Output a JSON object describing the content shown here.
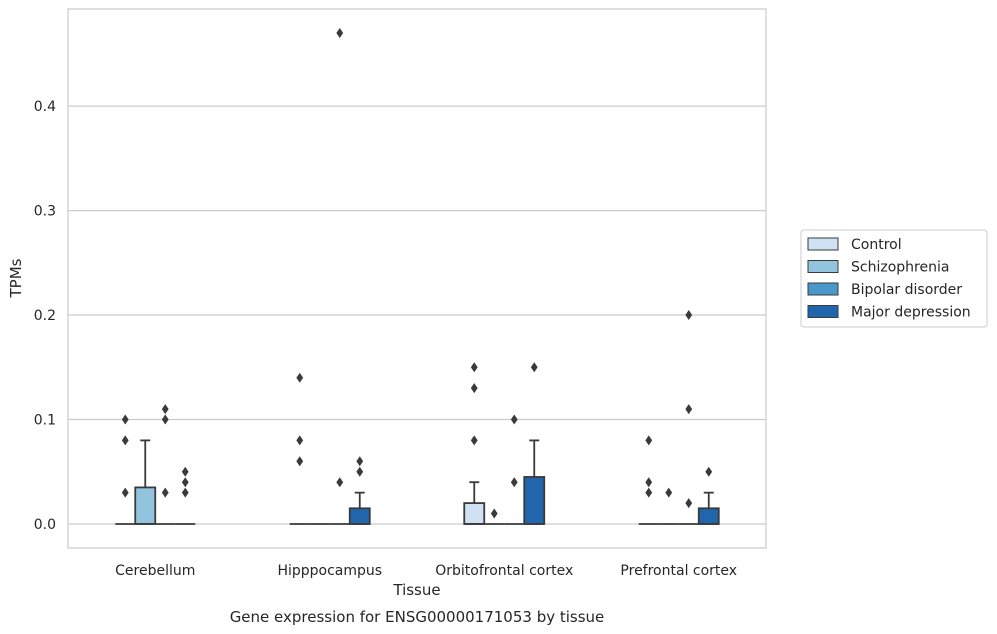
{
  "chart_data": {
    "type": "box",
    "title": "",
    "caption": "Gene expression for ENSG00000171053 by tissue",
    "xlabel": "Tissue",
    "ylabel": "TPMs",
    "ylim": [
      -0.023,
      0.493
    ],
    "yticks": [
      0.0,
      0.1,
      0.2,
      0.3,
      0.4
    ],
    "ytick_labels": [
      "0.0",
      "0.1",
      "0.2",
      "0.3",
      "0.4"
    ],
    "grid": "horizontal",
    "legend_position": "right",
    "categories": [
      "Cerebellum",
      "Hipppocampus",
      "Orbitofrontal cortex",
      "Prefrontal cortex"
    ],
    "series": [
      {
        "name": "Control",
        "color": "#cfe1f2",
        "boxes": [
          {
            "q1": 0,
            "median": 0,
            "q3": 0,
            "whisker_low": 0,
            "whisker_high": 0,
            "outliers": [
              0.03,
              0.08,
              0.1
            ]
          },
          {
            "q1": 0,
            "median": 0,
            "q3": 0,
            "whisker_low": 0,
            "whisker_high": 0,
            "outliers": [
              0.06,
              0.08,
              0.14
            ]
          },
          {
            "q1": 0,
            "median": 0,
            "q3": 0.02,
            "whisker_low": 0,
            "whisker_high": 0.04,
            "outliers": [
              0.08,
              0.13,
              0.15
            ]
          },
          {
            "q1": 0,
            "median": 0,
            "q3": 0,
            "whisker_low": 0,
            "whisker_high": 0,
            "outliers": [
              0.03,
              0.04,
              0.08
            ]
          }
        ]
      },
      {
        "name": "Schizophrenia",
        "color": "#93c4de",
        "boxes": [
          {
            "q1": 0,
            "median": 0,
            "q3": 0.035,
            "whisker_low": 0,
            "whisker_high": 0.08,
            "outliers": []
          },
          {
            "q1": 0,
            "median": 0,
            "q3": 0,
            "whisker_low": 0,
            "whisker_high": 0,
            "outliers": []
          },
          {
            "q1": 0,
            "median": 0,
            "q3": 0,
            "whisker_low": 0,
            "whisker_high": 0,
            "outliers": [
              0.01
            ]
          },
          {
            "q1": 0,
            "median": 0,
            "q3": 0,
            "whisker_low": 0,
            "whisker_high": 0,
            "outliers": [
              0.03
            ]
          }
        ]
      },
      {
        "name": "Bipolar disorder",
        "color": "#4a98c9",
        "boxes": [
          {
            "q1": 0,
            "median": 0,
            "q3": 0,
            "whisker_low": 0,
            "whisker_high": 0,
            "outliers": [
              0.03,
              0.1,
              0.11
            ]
          },
          {
            "q1": 0,
            "median": 0,
            "q3": 0,
            "whisker_low": 0,
            "whisker_high": 0,
            "outliers": [
              0.04,
              0.47
            ]
          },
          {
            "q1": 0,
            "median": 0,
            "q3": 0,
            "whisker_low": 0,
            "whisker_high": 0,
            "outliers": [
              0.04,
              0.1
            ]
          },
          {
            "q1": 0,
            "median": 0,
            "q3": 0,
            "whisker_low": 0,
            "whisker_high": 0,
            "outliers": [
              0.02,
              0.11,
              0.2
            ]
          }
        ]
      },
      {
        "name": "Major depression",
        "color": "#2166ac",
        "boxes": [
          {
            "q1": 0,
            "median": 0,
            "q3": 0,
            "whisker_low": 0,
            "whisker_high": 0,
            "outliers": [
              0.03,
              0.04,
              0.05
            ]
          },
          {
            "q1": 0,
            "median": 0,
            "q3": 0.015,
            "whisker_low": 0,
            "whisker_high": 0.03,
            "outliers": [
              0.05,
              0.06
            ]
          },
          {
            "q1": 0,
            "median": 0,
            "q3": 0.045,
            "whisker_low": 0,
            "whisker_high": 0.08,
            "outliers": [
              0.15
            ]
          },
          {
            "q1": 0,
            "median": 0,
            "q3": 0.015,
            "whisker_low": 0,
            "whisker_high": 0.03,
            "outliers": [
              0.05
            ]
          }
        ]
      }
    ]
  }
}
